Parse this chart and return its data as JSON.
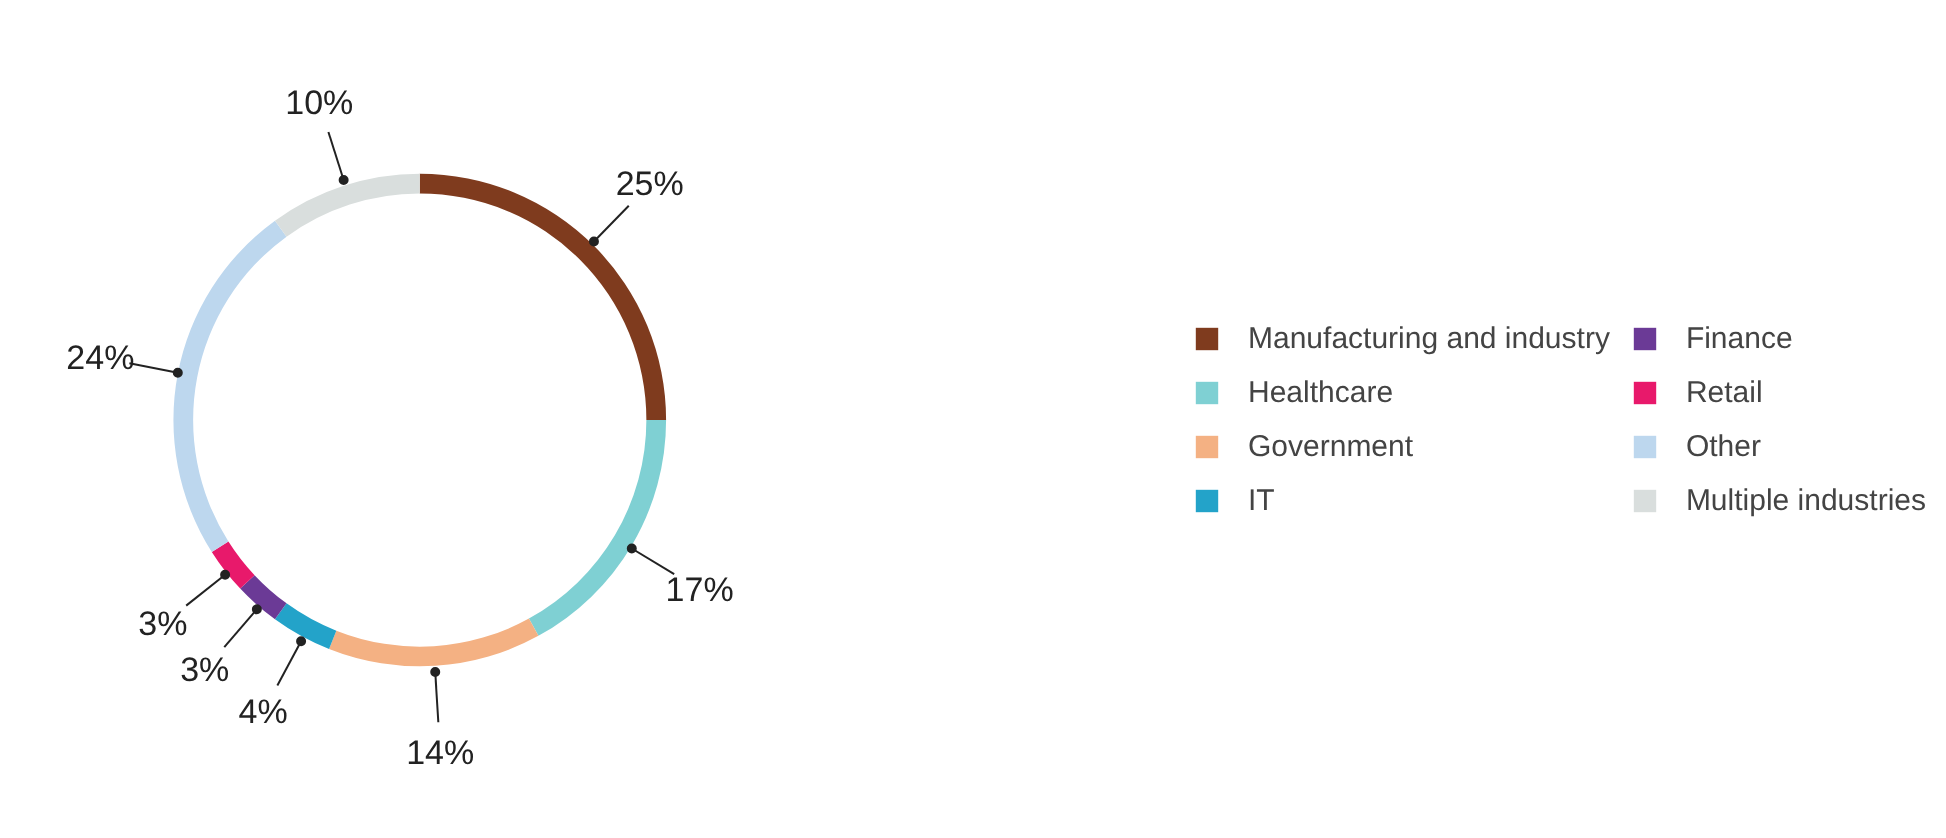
{
  "chart_data": {
    "type": "donut",
    "categories": [
      "Manufacturing and industry",
      "Healthcare",
      "Government",
      "IT",
      "Finance",
      "Retail",
      "Other",
      "Multiple industries"
    ],
    "values": [
      25,
      17,
      14,
      4,
      3,
      3,
      24,
      10
    ],
    "colors": [
      "#7f3b1e",
      "#7fd0d3",
      "#f4b183",
      "#23a3c9",
      "#6b3a96",
      "#e8196b",
      "#bdd7ee",
      "#d9dedd"
    ],
    "value_labels": [
      "25%",
      "17%",
      "14%",
      "4%",
      "3%",
      "3%",
      "24%",
      "10%"
    ],
    "legend": "right"
  }
}
